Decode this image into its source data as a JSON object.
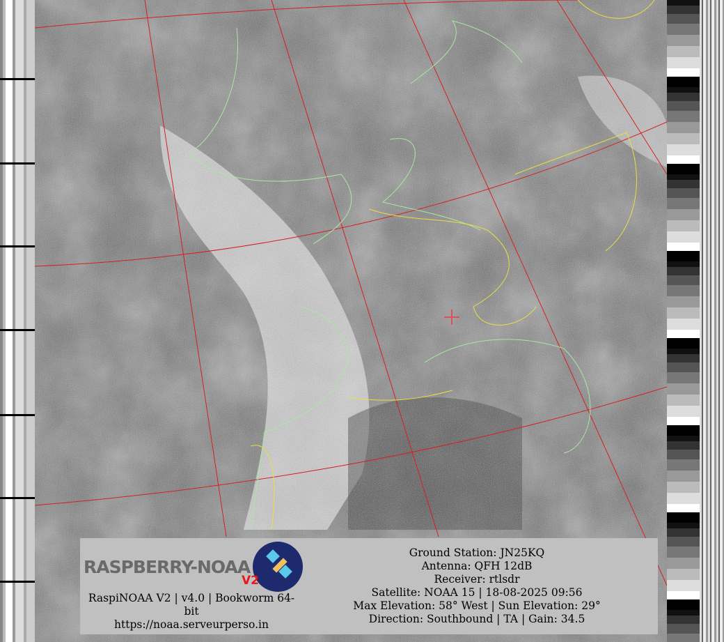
{
  "logo": {
    "text": "RASPBERRY-NOAA",
    "badge": "V2"
  },
  "left_info": [
    "RaspiNOAA V2 | v4.0 | Bookworm 64-",
    "bit",
    "https://noaa.serveurperso.in"
  ],
  "right_info": [
    "Ground Station: JN25KQ",
    "Antenna: QFH 12dB",
    "Receiver: rtlsdr",
    "Satellite: NOAA 15 | 18-08-2025 09:56",
    "Max Elevation: 58° West | Sun Elevation: 29°",
    "Direction: Southbound | TA | Gain: 34.5"
  ],
  "colors": {
    "grid": "#d42020",
    "coastline": "#a8e8a0",
    "borders": "#e8e040",
    "panel": "#c0c0c0",
    "station_marker": "#e05050"
  }
}
